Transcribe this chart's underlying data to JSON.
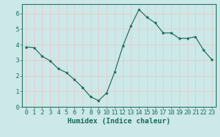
{
  "x": [
    0,
    1,
    2,
    3,
    4,
    5,
    6,
    7,
    8,
    9,
    10,
    11,
    12,
    13,
    14,
    15,
    16,
    17,
    18,
    19,
    20,
    21,
    22,
    23
  ],
  "y": [
    3.85,
    3.8,
    3.25,
    2.95,
    2.45,
    2.2,
    1.75,
    1.25,
    0.65,
    0.4,
    0.9,
    2.25,
    3.9,
    5.2,
    6.25,
    5.75,
    5.4,
    4.75,
    4.75,
    4.4,
    4.4,
    4.5,
    3.65,
    3.05
  ],
  "line_color": "#1a6b5a",
  "marker": "*",
  "marker_size": 3,
  "bg_color": "#cce8e8",
  "grid_color": "#e8c8c8",
  "xlabel": "Humidex (Indice chaleur)",
  "xlim": [
    -0.5,
    23.5
  ],
  "ylim": [
    0,
    6.6
  ],
  "yticks": [
    0,
    1,
    2,
    3,
    4,
    5,
    6
  ],
  "xticks": [
    0,
    1,
    2,
    3,
    4,
    5,
    6,
    7,
    8,
    9,
    10,
    11,
    12,
    13,
    14,
    15,
    16,
    17,
    18,
    19,
    20,
    21,
    22,
    23
  ],
  "xlabel_fontsize": 7.5,
  "tick_fontsize": 6.5,
  "tick_color": "#1a6b5a",
  "label_color": "#1a6b5a"
}
